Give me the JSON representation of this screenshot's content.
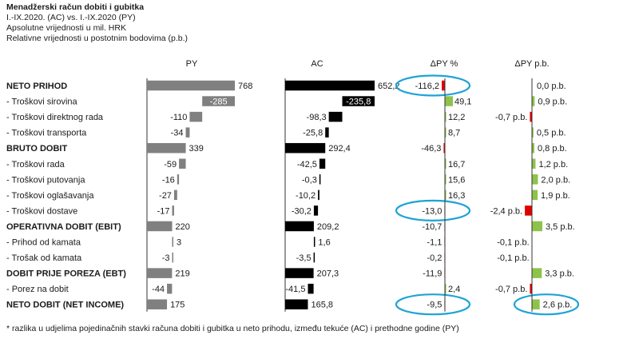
{
  "header": {
    "title": "Menadžerski račun dobiti i gubitka",
    "period": "I.-IX.2020. (AC) vs. I.-IX.2020 (PY)",
    "unit_abs": "Apsolutne vrijednosti u mil. HRK",
    "unit_rel": "Relativne vrijednosti u postotnim bodovima (p.b.)"
  },
  "footnote": "* razlika u udjelima pojedinačnih stavki računa dobiti i gubitka u neto prihodu, između tekuće (AC) i prethodne godine (PY)",
  "colors": {
    "py": "#808080",
    "ac": "#000000",
    "positive": "#8dc34a",
    "negative": "#e00000",
    "highlight": "#1fa3d6"
  },
  "chart_data": {
    "type": "bar",
    "columns": [
      "PY",
      "AC",
      "ΔPY %",
      "ΔPY p.b."
    ],
    "rows": [
      {
        "label": "NETO PRIHOD",
        "bold": true,
        "py": 768,
        "py_label": "768",
        "ac": 652.2,
        "ac_label": "652,2",
        "dpct": -116.2,
        "dpct_label": "-116,2",
        "dpb": 0.0,
        "dpb_label": "0,0 p.b.",
        "hl_pct": true,
        "hl_pb": false
      },
      {
        "label": "- Troškovi sirovina",
        "bold": false,
        "py": -285,
        "py_label": "-285",
        "ac": -235.8,
        "ac_label": "-235,8",
        "dpct": 49.1,
        "dpct_label": "49,1",
        "dpb": 0.9,
        "dpb_label": "0,9 p.b.",
        "hl_pct": false,
        "hl_pb": false
      },
      {
        "label": "- Troškovi direktnog rada",
        "bold": false,
        "py": -110,
        "py_label": "-110",
        "ac": -98.3,
        "ac_label": "-98,3",
        "dpct": 12.2,
        "dpct_label": "12,2",
        "dpb": -0.7,
        "dpb_label": "-0,7 p.b.",
        "hl_pct": false,
        "hl_pb": false
      },
      {
        "label": "- Troškovi transporta",
        "bold": false,
        "py": -34,
        "py_label": "-34",
        "ac": -25.8,
        "ac_label": "-25,8",
        "dpct": 8.7,
        "dpct_label": "8,7",
        "dpb": 0.5,
        "dpb_label": "0,5 p.b.",
        "hl_pct": false,
        "hl_pb": false
      },
      {
        "label": "BRUTO DOBIT",
        "bold": true,
        "py": 339,
        "py_label": "339",
        "ac": 292.4,
        "ac_label": "292,4",
        "dpct": -46.3,
        "dpct_label": "-46,3",
        "dpb": 0.8,
        "dpb_label": "0,8 p.b.",
        "hl_pct": false,
        "hl_pb": false
      },
      {
        "label": "- Troškovi rada",
        "bold": false,
        "py": -59,
        "py_label": "-59",
        "ac": -42.5,
        "ac_label": "-42,5",
        "dpct": 16.7,
        "dpct_label": "16,7",
        "dpb": 1.2,
        "dpb_label": "1,2 p.b.",
        "hl_pct": false,
        "hl_pb": false
      },
      {
        "label": "- Troškovi putovanja",
        "bold": false,
        "py": -16,
        "py_label": "-16",
        "ac": -0.3,
        "ac_label": "-0,3",
        "dpct": 15.6,
        "dpct_label": "15,6",
        "dpb": 2.0,
        "dpb_label": "2,0 p.b.",
        "hl_pct": false,
        "hl_pb": false
      },
      {
        "label": "- Troškovi oglašavanja",
        "bold": false,
        "py": -27,
        "py_label": "-27",
        "ac": -10.2,
        "ac_label": "-10,2",
        "dpct": 16.3,
        "dpct_label": "16,3",
        "dpb": 1.9,
        "dpb_label": "1,9 p.b.",
        "hl_pct": false,
        "hl_pb": false
      },
      {
        "label": "- Troškovi dostave",
        "bold": false,
        "py": -17,
        "py_label": "-17",
        "ac": -30.2,
        "ac_label": "-30,2",
        "dpct": -13.0,
        "dpct_label": "-13,0",
        "dpb": -2.4,
        "dpb_label": "-2,4 p.b.",
        "hl_pct": true,
        "hl_pb": false
      },
      {
        "label": "OPERATIVNA DOBIT (EBIT)",
        "bold": true,
        "py": 220,
        "py_label": "220",
        "ac": 209.2,
        "ac_label": "209,2",
        "dpct": -10.7,
        "dpct_label": "-10,7",
        "dpb": 3.5,
        "dpb_label": "3,5 p.b.",
        "hl_pct": false,
        "hl_pb": false
      },
      {
        "label": "- Prihod od kamata",
        "bold": false,
        "py": 3,
        "py_label": "3",
        "ac": 1.6,
        "ac_label": "1,6",
        "dpct": -1.1,
        "dpct_label": "-1,1",
        "dpb": -0.1,
        "dpb_label": "-0,1 p.b.",
        "hl_pct": false,
        "hl_pb": false
      },
      {
        "label": "- Trošak od kamata",
        "bold": false,
        "py": -3,
        "py_label": "-3",
        "ac": -3.5,
        "ac_label": "-3,5",
        "dpct": -0.2,
        "dpct_label": "-0,2",
        "dpb": -0.1,
        "dpb_label": "-0,1 p.b.",
        "hl_pct": false,
        "hl_pb": false
      },
      {
        "label": "DOBIT PRIJE POREZA (EBT)",
        "bold": true,
        "py": 219,
        "py_label": "219",
        "ac": 207.3,
        "ac_label": "207,3",
        "dpct": -11.9,
        "dpct_label": "-11,9",
        "dpb": 3.3,
        "dpb_label": "3,3 p.b.",
        "hl_pct": false,
        "hl_pb": false
      },
      {
        "label": "- Porez na dobit",
        "bold": false,
        "py": -44,
        "py_label": "-44",
        "ac": -41.5,
        "ac_label": "-41,5",
        "dpct": 2.4,
        "dpct_label": "2,4",
        "dpb": -0.7,
        "dpb_label": "-0,7 p.b.",
        "hl_pct": false,
        "hl_pb": false
      },
      {
        "label": "NETO DOBIT (NET INCOME)",
        "bold": true,
        "py": 175,
        "py_label": "175",
        "ac": 165.8,
        "ac_label": "165,8",
        "dpct": -9.5,
        "dpct_label": "-9,5",
        "dpb": 2.6,
        "dpb_label": "2,6 p.b.",
        "hl_pct": true,
        "hl_pb": true
      }
    ]
  }
}
